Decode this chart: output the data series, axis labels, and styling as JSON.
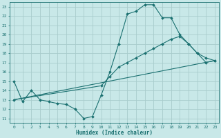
{
  "xlabel": "Humidex (Indice chaleur)",
  "bg_color": "#c8e8e8",
  "grid_color": "#a8cccc",
  "line_color": "#1a7070",
  "xlim": [
    -0.5,
    23.5
  ],
  "ylim": [
    10.5,
    23.5
  ],
  "yticks": [
    11,
    12,
    13,
    14,
    15,
    16,
    17,
    18,
    19,
    20,
    21,
    22,
    23
  ],
  "xticks": [
    0,
    1,
    2,
    3,
    4,
    5,
    6,
    7,
    8,
    9,
    10,
    11,
    12,
    13,
    14,
    15,
    16,
    17,
    18,
    19,
    20,
    21,
    22,
    23
  ],
  "line1_x": [
    0,
    1,
    2,
    3,
    4,
    5,
    6,
    7,
    8,
    9,
    10,
    11,
    12,
    13,
    14,
    15,
    16,
    17,
    18,
    19,
    20,
    21,
    22,
    23
  ],
  "line1_y": [
    15.0,
    12.8,
    14.0,
    13.0,
    12.8,
    12.6,
    12.5,
    12.0,
    11.0,
    11.2,
    13.5,
    16.0,
    19.0,
    22.2,
    22.5,
    23.2,
    23.2,
    21.8,
    21.8,
    20.0,
    19.0,
    18.0,
    17.0,
    17.2
  ],
  "line2_x": [
    0,
    10,
    11,
    12,
    13,
    14,
    15,
    16,
    17,
    18,
    19,
    20,
    21,
    22,
    23
  ],
  "line2_y": [
    13.0,
    14.5,
    15.5,
    16.5,
    17.0,
    17.5,
    18.0,
    18.5,
    19.0,
    19.5,
    19.8,
    19.0,
    18.0,
    17.5,
    17.2
  ],
  "line3_x": [
    0,
    23
  ],
  "line3_y": [
    13.0,
    17.2
  ]
}
